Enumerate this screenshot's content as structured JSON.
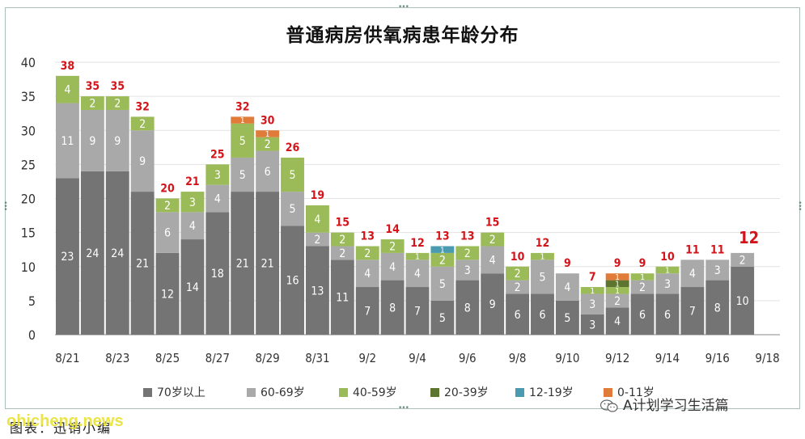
{
  "chart_data": {
    "type": "bar",
    "stacked": true,
    "title": "普通病房供氧病患年龄分布",
    "categories": [
      "8/21",
      "8/22",
      "8/23",
      "8/24",
      "8/25",
      "8/26",
      "8/27",
      "8/28",
      "8/29",
      "8/30",
      "8/31",
      "9/1",
      "9/2",
      "9/3",
      "9/4",
      "9/5",
      "9/6",
      "9/7",
      "9/8",
      "9/9",
      "9/10",
      "9/11",
      "9/12",
      "9/13",
      "9/14",
      "9/15",
      "9/16",
      "9/17",
      "9/18"
    ],
    "x_tick_labels": [
      "8/21",
      "8/23",
      "8/25",
      "8/27",
      "8/29",
      "8/31",
      "9/2",
      "9/4",
      "9/6",
      "9/8",
      "9/10",
      "9/12",
      "9/14",
      "9/16",
      "9/18"
    ],
    "ylim": [
      0,
      40
    ],
    "yticks": [
      0,
      5,
      10,
      15,
      20,
      25,
      30,
      35,
      40
    ],
    "grid": true,
    "legend_position": "bottom",
    "series": [
      {
        "name": "70岁以上",
        "color": "#747474",
        "values": [
          23,
          24,
          24,
          21,
          12,
          14,
          18,
          21,
          21,
          16,
          13,
          11,
          7,
          8,
          7,
          5,
          8,
          9,
          6,
          6,
          5,
          3,
          4,
          6,
          6,
          7,
          8,
          10,
          0
        ]
      },
      {
        "name": "60-69岁",
        "color": "#a9a9a9",
        "values": [
          11,
          9,
          9,
          9,
          6,
          4,
          4,
          5,
          6,
          5,
          2,
          2,
          4,
          4,
          4,
          5,
          3,
          4,
          2,
          5,
          4,
          3,
          2,
          2,
          3,
          4,
          3,
          2,
          0
        ]
      },
      {
        "name": "40-59岁",
        "color": "#9bbb59",
        "values": [
          4,
          2,
          2,
          2,
          2,
          3,
          3,
          5,
          2,
          5,
          4,
          2,
          2,
          2,
          1,
          2,
          2,
          2,
          2,
          1,
          0,
          1,
          1,
          1,
          1,
          0,
          0,
          0,
          0
        ]
      },
      {
        "name": "20-39岁",
        "color": "#5e7530",
        "values": [
          0,
          0,
          0,
          0,
          0,
          0,
          0,
          0,
          0,
          0,
          0,
          0,
          0,
          0,
          0,
          0,
          0,
          0,
          0,
          0,
          0,
          0,
          1,
          0,
          0,
          0,
          0,
          0,
          0
        ]
      },
      {
        "name": "12-19岁",
        "color": "#4a9bb0",
        "values": [
          0,
          0,
          0,
          0,
          0,
          0,
          0,
          0,
          0,
          0,
          0,
          0,
          0,
          0,
          0,
          1,
          0,
          0,
          0,
          0,
          0,
          0,
          0,
          0,
          0,
          0,
          0,
          0,
          0
        ]
      },
      {
        "name": "0-11岁",
        "color": "#e07b39",
        "values": [
          0,
          0,
          0,
          0,
          0,
          0,
          0,
          1,
          1,
          0,
          0,
          0,
          0,
          0,
          0,
          0,
          0,
          0,
          0,
          0,
          0,
          0,
          1,
          0,
          0,
          0,
          0,
          0,
          0
        ]
      }
    ],
    "totals": [
      38,
      35,
      35,
      32,
      20,
      21,
      25,
      32,
      30,
      26,
      19,
      15,
      13,
      14,
      12,
      13,
      13,
      15,
      10,
      12,
      9,
      7,
      9,
      9,
      10,
      11,
      11,
      12,
      null
    ],
    "total_label_color": "#d3151b",
    "highlight_last_total": true
  },
  "source_caption": "图表：迅销小编",
  "wechat_label": "A计划学习生活篇",
  "watermark": "ohicheng.news"
}
